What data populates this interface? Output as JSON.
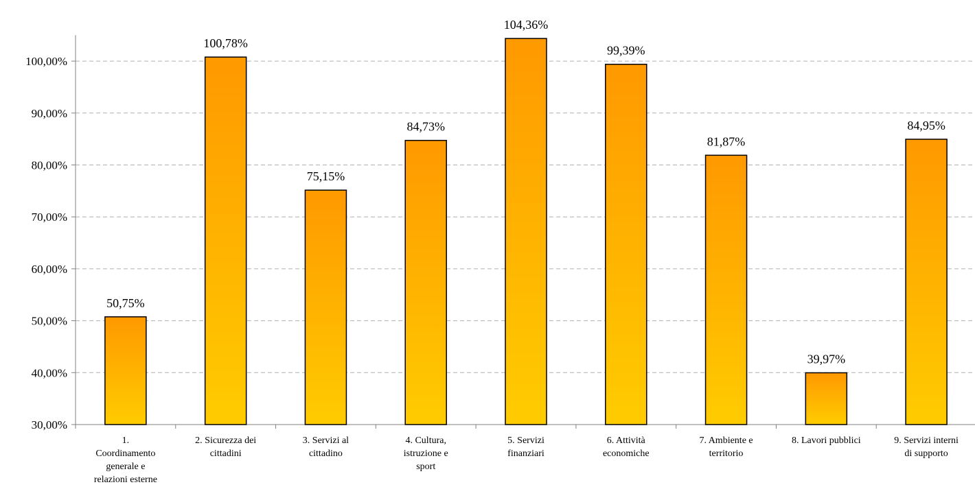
{
  "colors": {
    "bar_top": "#ff9900",
    "bar_bottom": "#ffcc00",
    "bar_stroke": "#000000",
    "grid": "#b0b0b0",
    "axis": "#808080"
  },
  "chart_data": {
    "type": "bar",
    "title": "",
    "xlabel": "",
    "ylabel": "",
    "ylim": [
      30,
      105
    ],
    "grid": true,
    "legend": "none",
    "yticks": [
      30,
      40,
      50,
      60,
      70,
      80,
      90,
      100
    ],
    "ytick_labels": [
      "30,00%",
      "40,00%",
      "50,00%",
      "60,00%",
      "70,00%",
      "80,00%",
      "90,00%",
      "100,00%"
    ],
    "categories": [
      "1. Coordinamento generale e relazioni esterne",
      "2. Sicurezza dei cittadini",
      "3. Servizi al cittadino",
      "4. Cultura, istruzione e sport",
      "5. Servizi finanziari",
      "6. Attività economiche",
      "7. Ambiente e territorio",
      "8. Lavori pubblici",
      "9. Servizi interni di supporto"
    ],
    "category_label_lines": [
      [
        "1.",
        "Coordinamento",
        "generale e",
        "relazioni esterne"
      ],
      [
        "2. Sicurezza dei",
        "cittadini"
      ],
      [
        "3. Servizi al",
        "cittadino"
      ],
      [
        "4. Cultura,",
        "istruzione e",
        "sport"
      ],
      [
        "5. Servizi",
        "finanziari"
      ],
      [
        "6. Attività",
        "economiche"
      ],
      [
        "7. Ambiente e",
        "territorio"
      ],
      [
        "8. Lavori pubblici"
      ],
      [
        "9. Servizi interni",
        "di supporto"
      ]
    ],
    "values": [
      50.75,
      100.78,
      75.15,
      84.73,
      104.36,
      99.39,
      81.87,
      39.97,
      84.95
    ],
    "data_labels": [
      "50,75%",
      "100,78%",
      "75,15%",
      "84,73%",
      "104,36%",
      "99,39%",
      "81,87%",
      "39,97%",
      "84,95%"
    ]
  }
}
